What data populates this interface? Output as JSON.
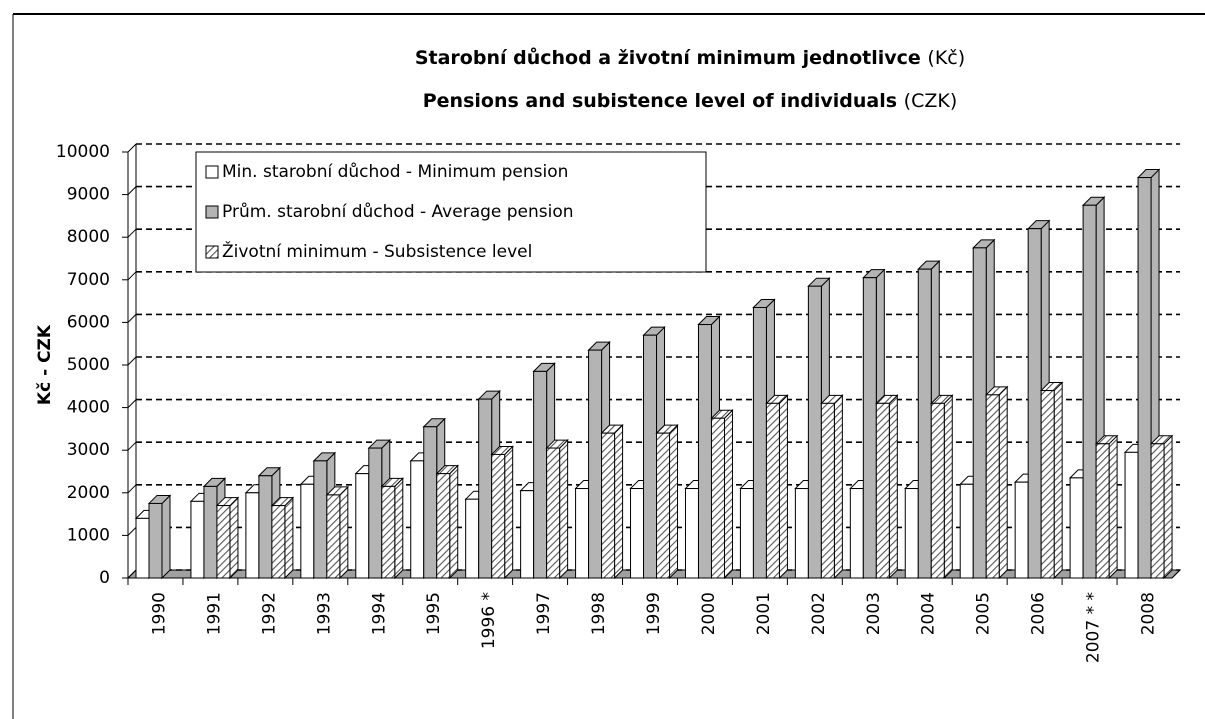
{
  "chart_data": {
    "type": "bar3d",
    "title": "Starobní důchod a životní minimum jednotlivce",
    "title_unit": "(Kč)",
    "subtitle": "Pensions and subistence level of individuals",
    "subtitle_unit": "(CZK)",
    "y_label": "Kč - CZK",
    "categories": [
      "1990",
      "1991",
      "1992",
      "1993",
      "1994",
      "1995",
      "1996 *",
      "1997",
      "1998",
      "1999",
      "2000",
      "2001",
      "2002",
      "2003",
      "2004",
      "2005",
      "2006",
      "2007 * *",
      "2008"
    ],
    "series": [
      {
        "name": "Min. starobní důchod - Minimum pension",
        "color": "#ffffff",
        "values": [
          1400,
          1800,
          2000,
          2200,
          2450,
          2750,
          1850,
          2050,
          2100,
          2100,
          2100,
          2100,
          2100,
          2100,
          2100,
          2200,
          2250,
          2350,
          2950
        ]
      },
      {
        "name": "Prům. starobní důchod - Average pension",
        "color": "#b4b4b4",
        "values": [
          1750,
          2150,
          2400,
          2750,
          3050,
          3550,
          4200,
          4850,
          5350,
          5700,
          5950,
          6350,
          6850,
          7050,
          7250,
          7750,
          8200,
          8750,
          9400
        ]
      },
      {
        "name": "Životní minimum - Subsistence level",
        "color": "#808080",
        "pattern": "hatch",
        "values": [
          null,
          1700,
          1700,
          1950,
          2150,
          2450,
          2900,
          3050,
          3400,
          3400,
          3750,
          4100,
          4100,
          4100,
          4100,
          4300,
          4400,
          3150,
          3150
        ]
      }
    ],
    "ylim": [
      0,
      10000
    ],
    "yticks": [
      0,
      1000,
      2000,
      3000,
      4000,
      5000,
      6000,
      7000,
      8000,
      9000,
      10000
    ],
    "grid": true
  }
}
